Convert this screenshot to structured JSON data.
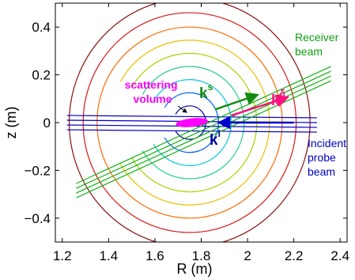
{
  "chart_data": {
    "type": "line",
    "title": "",
    "xlabel": "R (m)",
    "ylabel": "z (m)",
    "xlim": [
      1.17,
      2.43
    ],
    "ylim": [
      -0.5,
      0.5
    ],
    "x_ticks": [
      1.2,
      1.4,
      1.6,
      1.8,
      2.0,
      2.2,
      2.4
    ],
    "x_tick_labels": [
      "1.2",
      "1.4",
      "1.6",
      "1.8",
      "2",
      "2.2",
      "2.4"
    ],
    "y_ticks": [
      -0.4,
      -0.2,
      0,
      0.2,
      0.4
    ],
    "y_tick_labels": [
      "−0.4",
      "−0.2",
      "0",
      "0.2",
      "0.4"
    ],
    "grid": false,
    "legend": "none",
    "contours": {
      "center": [
        1.75,
        0.0
      ],
      "outer_radii_m": [
        0.52,
        0.46,
        0.4,
        0.345,
        0.29,
        0.235,
        0.18,
        0.125,
        0.07
      ],
      "colors": [
        "#8a1010",
        "#d81818",
        "#ff6a00",
        "#e8c000",
        "#a6d400",
        "#28d088",
        "#00c8e0",
        "#0060ff",
        "#0000a0"
      ]
    },
    "beams": [
      {
        "name": "Incident probe beam",
        "color": "#0000c8",
        "lines": [
          {
            "x": [
              1.22,
              2.3
            ],
            "z": [
              0.03,
              0.02
            ]
          },
          {
            "x": [
              1.22,
              2.3
            ],
            "z": [
              0.01,
              0.0
            ]
          },
          {
            "x": [
              1.22,
              2.3
            ],
            "z": [
              -0.01,
              -0.02
            ]
          },
          {
            "x": [
              1.22,
              2.3
            ],
            "z": [
              -0.03,
              -0.04
            ]
          }
        ]
      },
      {
        "name": "Receiver beam",
        "color": "#10b010",
        "lines": [
          {
            "x": [
              1.26,
              2.36
            ],
            "z": [
              -0.255,
              0.235
            ]
          },
          {
            "x": [
              1.26,
              2.36
            ],
            "z": [
              -0.275,
              0.215
            ]
          },
          {
            "x": [
              1.26,
              2.36
            ],
            "z": [
              -0.295,
              0.195
            ]
          },
          {
            "x": [
              1.26,
              2.36
            ],
            "z": [
              -0.315,
              0.175
            ]
          }
        ]
      }
    ],
    "scattering_volume": {
      "center": [
        1.76,
        0.0
      ],
      "semi_axes_m": [
        0.07,
        0.018
      ],
      "color": "#ff00ff"
    },
    "vectors": [
      {
        "name": "k^i",
        "from": [
          2.2,
          0.0
        ],
        "to": [
          1.88,
          0.0
        ],
        "color": "#0000c8"
      },
      {
        "name": "k^s",
        "from": [
          1.86,
          0.055
        ],
        "to": [
          2.04,
          0.115
        ],
        "color": "#108a10"
      },
      {
        "name": "k^delta",
        "from": [
          1.93,
          0.03
        ],
        "to": [
          2.17,
          0.105
        ],
        "color": "#ff1080"
      }
    ],
    "annotations": {
      "receiver": [
        "Receiver",
        "beam"
      ],
      "incident": [
        "Incident",
        "probe",
        "beam"
      ],
      "scattering": [
        "scattering",
        "volume"
      ],
      "ki": {
        "base": "k",
        "sup": "i"
      },
      "ks": {
        "base": "k",
        "sup": "s"
      },
      "kdelta": {
        "base": "k",
        "sup": "δ"
      }
    },
    "annotation_colors": {
      "receiver": "#10a010",
      "incident": "#0000c8",
      "scattering": "#ff00ff",
      "ki": "#0000a0",
      "ks": "#108a10",
      "kdelta": "#ff1080"
    }
  }
}
